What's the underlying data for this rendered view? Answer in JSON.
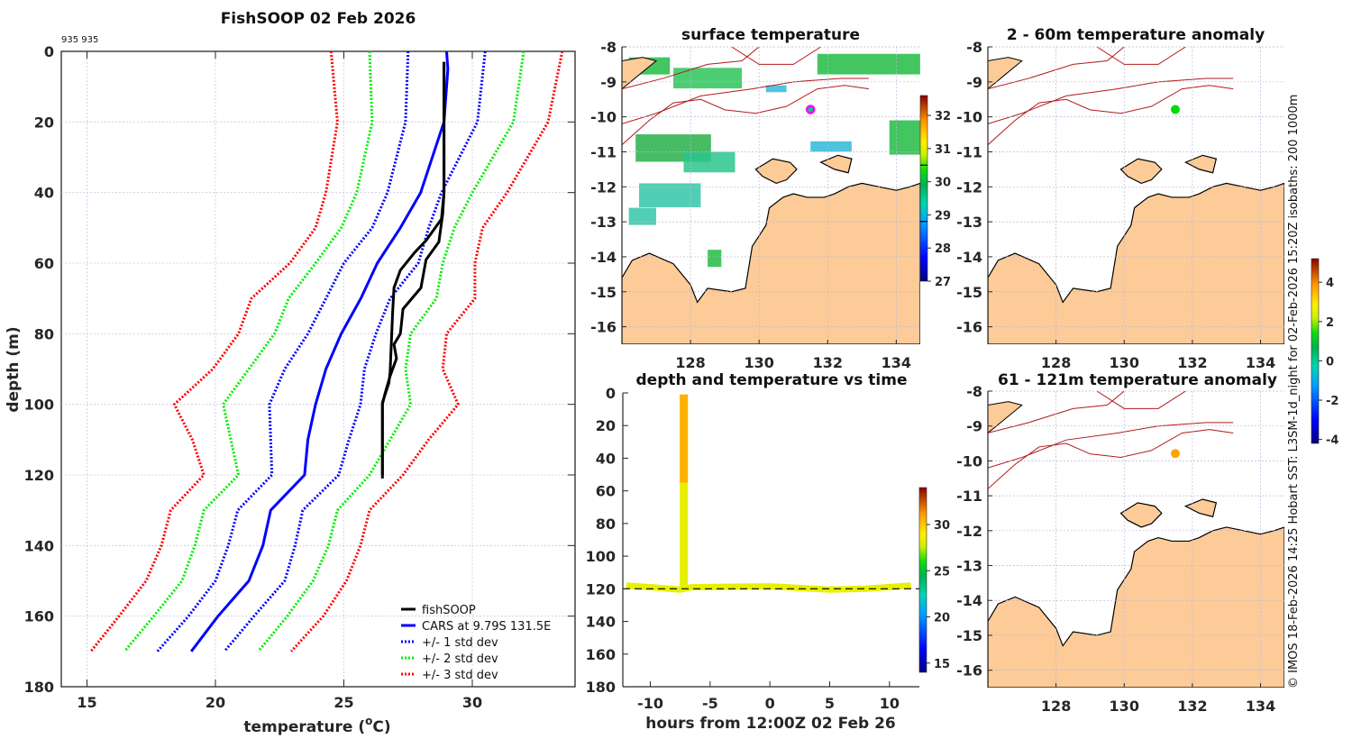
{
  "chart_data": [
    {
      "type": "line",
      "id": "profile",
      "title": "FishSOOP 02 Feb 2026",
      "annotation": "935 935",
      "xlabel": "temperature (°C)",
      "xlabel_main": "temperature (",
      "xlabel_sup": "o",
      "xlabel_end": "C)",
      "ylabel": "depth (m)",
      "xlim": [
        14,
        34
      ],
      "ylim": [
        180,
        0
      ],
      "xticks": [
        15,
        20,
        25,
        30
      ],
      "yticks": [
        0,
        20,
        40,
        60,
        80,
        100,
        120,
        140,
        160,
        180
      ],
      "grid": true,
      "legend_position": "bottom-right",
      "series": [
        {
          "name": "fishSOOP",
          "style": "solid",
          "color": "#000000",
          "points": [
            [
              28.9,
              3
            ],
            [
              28.9,
              20
            ],
            [
              28.9,
              40
            ],
            [
              28.85,
              46
            ],
            [
              28.7,
              54
            ],
            [
              28.2,
              59
            ],
            [
              28.0,
              67
            ],
            [
              27.3,
              73
            ],
            [
              27.2,
              80
            ],
            [
              26.95,
              83
            ],
            [
              27.05,
              87
            ],
            [
              26.8,
              92
            ],
            [
              26.6,
              97
            ],
            [
              26.5,
              100
            ],
            [
              26.5,
              110
            ],
            [
              26.5,
              121
            ]
          ]
        },
        {
          "name": "fishSOOP (cast 2)",
          "legend": false,
          "style": "solid",
          "color": "#000000",
          "points": [
            [
              28.9,
              3
            ],
            [
              28.9,
              40
            ],
            [
              28.8,
              47.5
            ],
            [
              28.2,
              53.6
            ],
            [
              27.75,
              57
            ],
            [
              27.2,
              62
            ],
            [
              26.95,
              67
            ],
            [
              26.9,
              74
            ],
            [
              26.8,
              91
            ],
            [
              26.75,
              94
            ],
            [
              26.5,
              99.5
            ],
            [
              26.5,
              120
            ]
          ]
        },
        {
          "name": "CARS at 9.79S 131.5E",
          "style": "solid",
          "color": "#0000ff",
          "points": [
            [
              29.0,
              0
            ],
            [
              29.05,
              5
            ],
            [
              28.9,
              20
            ],
            [
              27.99,
              40
            ],
            [
              27.2,
              50
            ],
            [
              26.3,
              60
            ],
            [
              25.66,
              70
            ],
            [
              24.9,
              80
            ],
            [
              24.3,
              90
            ],
            [
              23.9,
              100
            ],
            [
              23.6,
              110
            ],
            [
              23.47,
              120
            ],
            [
              22.15,
              130
            ],
            [
              21.85,
              140
            ],
            [
              21.3,
              150
            ],
            [
              20.1,
              160
            ],
            [
              19.06,
              170
            ]
          ]
        },
        {
          "name": "+/- 1 std dev",
          "style": "dotted",
          "color": "#0000ff",
          "points": [
            [
              27.5,
              0
            ],
            [
              27.4,
              20
            ],
            [
              26.7,
              40
            ],
            [
              26.1,
              50
            ],
            [
              25.0,
              60
            ],
            [
              24.3,
              70
            ],
            [
              23.6,
              80
            ],
            [
              22.7,
              90
            ],
            [
              22.1,
              100
            ],
            [
              22.15,
              110
            ],
            [
              22.2,
              120
            ],
            [
              20.87,
              130
            ],
            [
              20.5,
              140
            ],
            [
              20.0,
              150
            ],
            [
              18.95,
              160
            ],
            [
              17.74,
              170
            ]
          ]
        },
        {
          "name": "+1 std dev",
          "legend": false,
          "style": "dotted",
          "color": "#0000ff",
          "points": [
            [
              30.5,
              0
            ],
            [
              30.2,
              20
            ],
            [
              28.8,
              40
            ],
            [
              28.3,
              50
            ],
            [
              27.9,
              60
            ],
            [
              26.8,
              70
            ],
            [
              26.25,
              80
            ],
            [
              25.8,
              90
            ],
            [
              25.65,
              100
            ],
            [
              25.2,
              110
            ],
            [
              24.8,
              120
            ],
            [
              23.4,
              130
            ],
            [
              23.1,
              140
            ],
            [
              22.7,
              150
            ],
            [
              21.5,
              160
            ],
            [
              20.35,
              170
            ]
          ]
        },
        {
          "name": "+/- 2 std dev",
          "style": "dotted",
          "color": "#00ee00",
          "points": [
            [
              26.0,
              0
            ],
            [
              26.1,
              20
            ],
            [
              25.5,
              40
            ],
            [
              24.9,
              50
            ],
            [
              23.9,
              60
            ],
            [
              22.85,
              70
            ],
            [
              22.3,
              80
            ],
            [
              21.3,
              90
            ],
            [
              20.3,
              100
            ],
            [
              20.6,
              110
            ],
            [
              20.9,
              120
            ],
            [
              19.55,
              130
            ],
            [
              19.2,
              140
            ],
            [
              18.7,
              150
            ],
            [
              17.6,
              160
            ],
            [
              16.46,
              170
            ]
          ]
        },
        {
          "name": "+2 std dev",
          "legend": false,
          "style": "dotted",
          "color": "#00ee00",
          "points": [
            [
              32.0,
              0
            ],
            [
              31.6,
              20
            ],
            [
              30.0,
              40
            ],
            [
              29.3,
              50
            ],
            [
              28.85,
              60
            ],
            [
              28.6,
              70
            ],
            [
              27.6,
              80
            ],
            [
              27.4,
              90
            ],
            [
              27.6,
              100
            ],
            [
              26.8,
              110
            ],
            [
              26.0,
              120
            ],
            [
              24.75,
              130
            ],
            [
              24.4,
              140
            ],
            [
              23.8,
              150
            ],
            [
              22.8,
              160
            ],
            [
              21.67,
              170
            ]
          ]
        },
        {
          "name": "+/- 3 std dev",
          "style": "dotted",
          "color": "#ff0000",
          "points": [
            [
              24.5,
              0
            ],
            [
              24.75,
              20
            ],
            [
              24.3,
              40
            ],
            [
              23.9,
              50
            ],
            [
              22.9,
              60
            ],
            [
              21.4,
              70
            ],
            [
              20.9,
              80
            ],
            [
              19.9,
              90
            ],
            [
              18.4,
              100
            ],
            [
              19.1,
              110
            ],
            [
              19.55,
              120
            ],
            [
              18.26,
              130
            ],
            [
              17.9,
              140
            ],
            [
              17.3,
              150
            ],
            [
              16.25,
              160
            ],
            [
              15.15,
              170
            ]
          ]
        },
        {
          "name": "+3 std dev",
          "legend": false,
          "style": "dotted",
          "color": "#ff0000",
          "points": [
            [
              33.5,
              0
            ],
            [
              32.95,
              20
            ],
            [
              31.35,
              40
            ],
            [
              30.4,
              50
            ],
            [
              30.1,
              60
            ],
            [
              30.1,
              70
            ],
            [
              29.0,
              80
            ],
            [
              28.85,
              90
            ],
            [
              29.45,
              100
            ],
            [
              28.3,
              110
            ],
            [
              27.3,
              120
            ],
            [
              26.0,
              130
            ],
            [
              25.65,
              140
            ],
            [
              25.1,
              150
            ],
            [
              24.2,
              160
            ],
            [
              22.95,
              170
            ]
          ]
        }
      ]
    },
    {
      "type": "heatmap",
      "id": "sst_map",
      "title": "surface temperature",
      "xlim": [
        126,
        134.7
      ],
      "ylim": [
        -16.5,
        -8
      ],
      "xticks": [
        128,
        130,
        132,
        134
      ],
      "yticks": [
        -8,
        -9,
        -10,
        -11,
        -12,
        -13,
        -14,
        -15,
        -16
      ],
      "colorbar": {
        "min": 27,
        "max": 32.6,
        "ticks": [
          27,
          28,
          29,
          30,
          31,
          32
        ],
        "colormap": "jet",
        "marker_lines": [
          28.8,
          30.5
        ]
      },
      "marker": {
        "lon": 131.5,
        "lat": -9.79,
        "edge_color": "#ff00ff",
        "fill_color": "#00cc88"
      },
      "land_color": "#fccb98",
      "isobath_color": "#b21a1a"
    },
    {
      "type": "scatter",
      "id": "depth_time",
      "title": "depth and temperature vs time",
      "xlabel": "hours from 12:00Z 02 Feb 26",
      "xlim": [
        -12.3,
        12.5
      ],
      "ylim": [
        180,
        0
      ],
      "xticks": [
        -10,
        -5,
        0,
        5,
        10
      ],
      "yticks": [
        0,
        20,
        40,
        60,
        80,
        100,
        120,
        140,
        160,
        180
      ],
      "colorbar": {
        "min": 14,
        "max": 34,
        "ticks": [
          15,
          20,
          25,
          30
        ],
        "colormap": "jet"
      },
      "reference_depth": 120,
      "series": [
        {
          "name": "cast",
          "points": [
            [
              -7.2,
              1,
              29.0
            ],
            [
              -7.2,
              20,
              28.9
            ],
            [
              -7.2,
              45,
              28.8
            ],
            [
              -7.2,
              60,
              27.5
            ],
            [
              -7.2,
              80,
              26.9
            ],
            [
              -7.2,
              100,
              26.6
            ],
            [
              -7.2,
              119,
              26.5
            ]
          ]
        },
        {
          "name": "tow",
          "points": [
            [
              -12.0,
              118,
              26.5
            ],
            [
              -10,
              119,
              26.5
            ],
            [
              -7.5,
              120.5,
              26.5
            ],
            [
              -6.5,
              119,
              26.5
            ],
            [
              0,
              118.5,
              26.5
            ],
            [
              5,
              120.5,
              26.5
            ],
            [
              8,
              120,
              26.5
            ],
            [
              11.8,
              118,
              26.5
            ]
          ]
        }
      ]
    },
    {
      "type": "heatmap",
      "id": "anomaly_2_60",
      "title": "2 - 60m temperature anomaly",
      "xlim": [
        126,
        134.7
      ],
      "ylim": [
        -16.5,
        -8
      ],
      "xticks": [
        128,
        130,
        132,
        134
      ],
      "yticks": [
        -8,
        -9,
        -10,
        -11,
        -12,
        -13,
        -14,
        -15,
        -16
      ],
      "marker": {
        "lon": 131.5,
        "lat": -9.79,
        "anomaly": 0.0,
        "color": "#00dd00"
      }
    },
    {
      "type": "heatmap",
      "id": "anomaly_61_121",
      "title": "61 - 121m temperature anomaly",
      "xlim": [
        126,
        134.7
      ],
      "ylim": [
        -16.5,
        -8
      ],
      "xticks": [
        128,
        130,
        132,
        134
      ],
      "yticks": [
        -8,
        -9,
        -10,
        -11,
        -12,
        -13,
        -14,
        -15,
        -16
      ],
      "marker": {
        "lon": 131.5,
        "lat": -9.79,
        "anomaly": 3.0,
        "color": "#ffa500"
      }
    },
    {
      "type": "colorbar",
      "id": "anomaly_colorbar",
      "min": -4.2,
      "max": 5.2,
      "ticks": [
        -4,
        -2,
        0,
        2,
        4
      ],
      "colormap": "jet"
    }
  ],
  "credit": "© IMOS 18-Feb-2026 14:25 Hobart SST: L3SM-1d_night for 02-Feb-2026 15:20Z isobaths: 200  1000m"
}
